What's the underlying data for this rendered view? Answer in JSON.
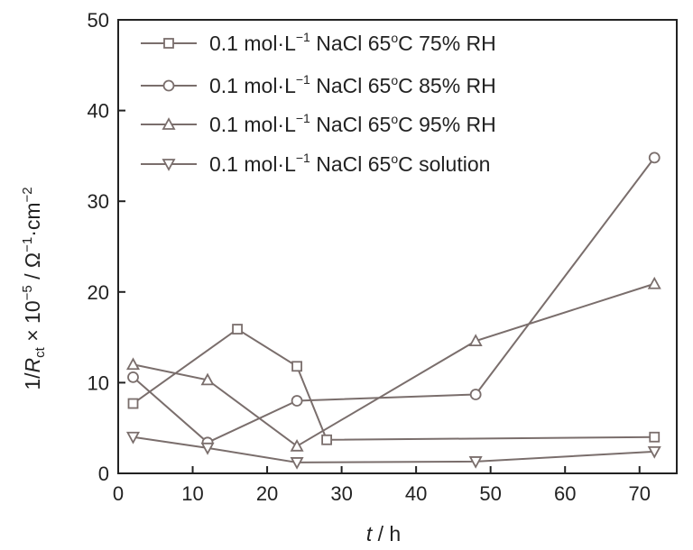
{
  "chart_data": {
    "type": "line",
    "xlabel": "t / h",
    "ylabel": "1/Rct × 10−5 / Ω−1·cm−2",
    "xlim": [
      0,
      75
    ],
    "ylim": [
      0,
      50
    ],
    "xticks": [
      0,
      10,
      20,
      30,
      40,
      50,
      60,
      70
    ],
    "yticks": [
      0,
      10,
      20,
      30,
      40,
      50
    ],
    "grid": false,
    "legend_position": "top-left",
    "line_color": "#7a6e6c",
    "series": [
      {
        "name": "0.1 mol·L−1 NaCl 65°C 75% RH",
        "marker": "square",
        "x": [
          2,
          16,
          24,
          28,
          72
        ],
        "y": [
          7.7,
          15.9,
          11.8,
          3.7,
          4.0
        ]
      },
      {
        "name": "0.1 mol·L−1 NaCl 65°C 85% RH",
        "marker": "circle",
        "x": [
          2,
          12,
          24,
          48,
          72
        ],
        "y": [
          10.6,
          3.4,
          8.0,
          8.7,
          34.8
        ]
      },
      {
        "name": "0.1 mol·L−1 NaCl 65°C 95% RH",
        "marker": "triangle-up",
        "x": [
          2,
          12,
          24,
          48,
          72
        ],
        "y": [
          12.0,
          10.3,
          3.0,
          14.6,
          20.9
        ]
      },
      {
        "name": "0.1 mol·L−1 NaCl 65°C solution",
        "marker": "triangle-down",
        "x": [
          2,
          12,
          24,
          48,
          72
        ],
        "y": [
          4.0,
          2.8,
          1.2,
          1.3,
          2.4
        ]
      }
    ]
  },
  "axis_text": {
    "x_main": "t",
    "x_unit": " / h",
    "y_1": "1/",
    "y_R": "R",
    "y_ct": "ct",
    "y_times": " × 10",
    "y_exp1": "−5",
    "y_slash": " / Ω",
    "y_exp2": "−1",
    "y_cm": "·cm",
    "y_exp3": "−2"
  },
  "legend_text": [
    {
      "pre": "0.1 mol·L",
      "sup": "−1",
      "mid": " NaCl 65",
      "deg": "o",
      "post": "C 75% RH"
    },
    {
      "pre": "0.1 mol·L",
      "sup": "−1",
      "mid": " NaCl 65",
      "deg": "o",
      "post": "C 85% RH"
    },
    {
      "pre": "0.1 mol·L",
      "sup": "−1",
      "mid": " NaCl 65",
      "deg": "o",
      "post": "C 95% RH"
    },
    {
      "pre": "0.1 mol·L",
      "sup": "−1",
      "mid": " NaCl 65",
      "deg": "o",
      "post": "C solution"
    }
  ]
}
